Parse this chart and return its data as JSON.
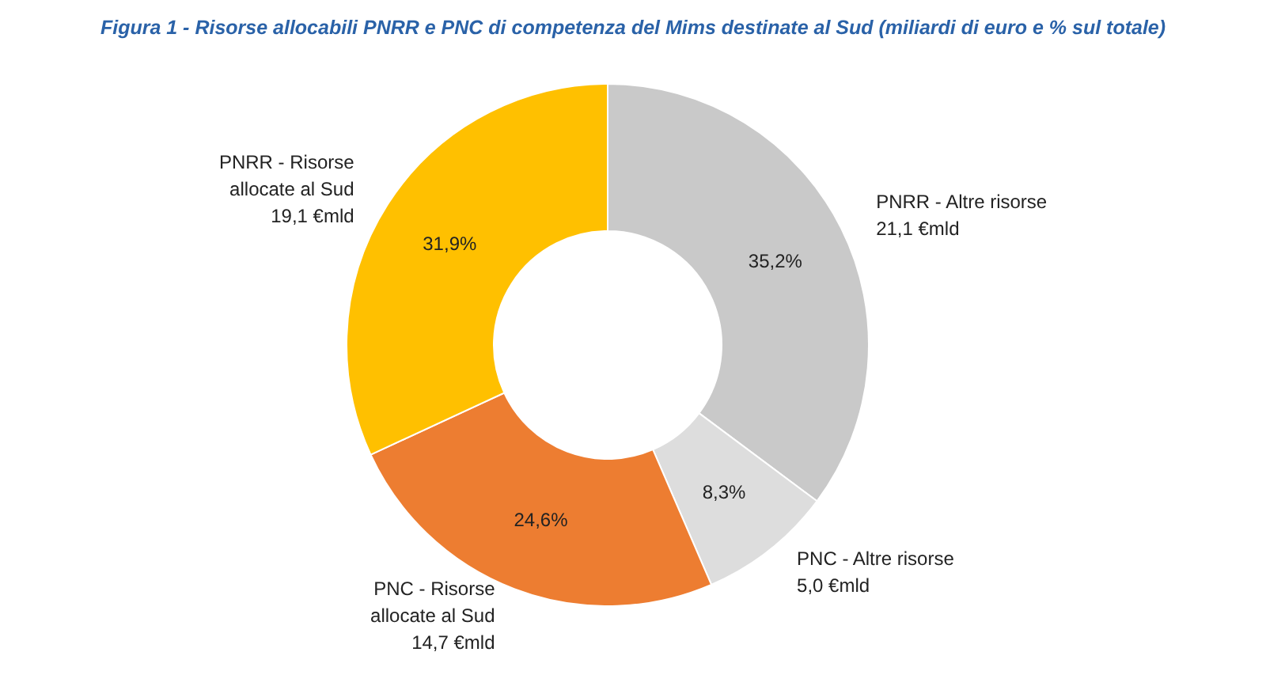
{
  "chart_data": {
    "type": "donut",
    "title": "Figura 1 - Risorse allocabili PNRR e PNC di competenza del Mims destinate al Sud (miliardi di euro e % sul totale)",
    "categories": [
      "PNRR - Altre risorse\n21,1 €mld",
      "PNC - Altre risorse\n5,0 €mld",
      "PNC - Risorse\nallocate al Sud\n14,7 €mld",
      "PNRR - Risorse\nallocate al Sud\n19,1 €mld"
    ],
    "values": [
      35.2,
      8.3,
      24.6,
      31.9
    ],
    "colors": [
      "#c9c9c9",
      "#dddddd",
      "#ed7d31",
      "#ffc000"
    ],
    "value_labels": [
      "35,2%",
      "8,3%",
      "24,6%",
      "31,9%"
    ],
    "legend": false
  }
}
